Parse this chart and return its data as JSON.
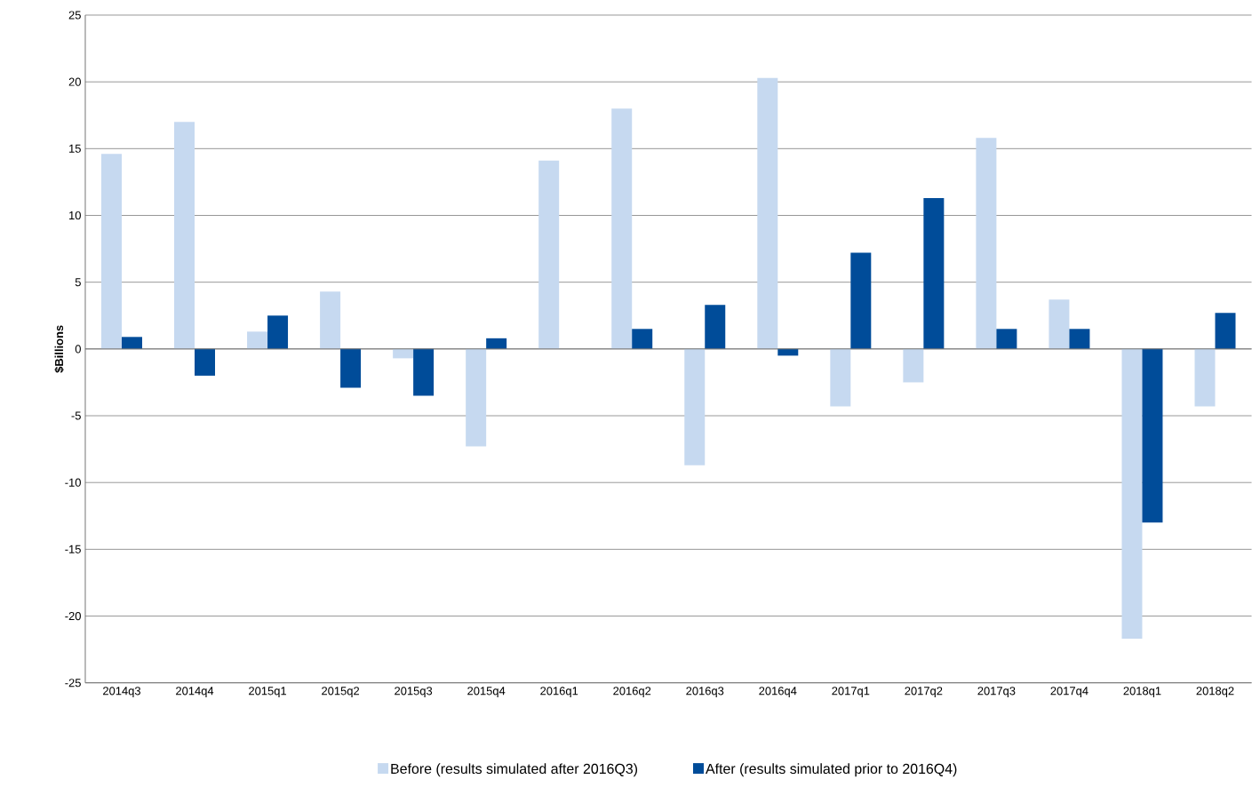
{
  "chart_data": {
    "type": "bar",
    "ylabel": "**$Billions**",
    "categories": [
      "2014q3",
      "2014q4",
      "2015q1",
      "2015q2",
      "2015q3",
      "2015q4",
      "2016q1",
      "2016q2",
      "2016q3",
      "2016q4",
      "2017q1",
      "2017q2",
      "2017q3",
      "2017q4",
      "2018q1",
      "2018q2"
    ],
    "series": [
      {
        "name": "Before (results simulated after 2016Q3)",
        "color": "#c6d9f0",
        "values": [
          14.6,
          17.0,
          1.3,
          4.3,
          -0.7,
          -7.3,
          14.1,
          18.0,
          -8.7,
          20.3,
          -4.3,
          -2.5,
          15.8,
          3.7,
          -21.7,
          -4.3
        ]
      },
      {
        "name": "After (results simulated prior to 2016Q4)",
        "color": "#004c99",
        "values": [
          0.9,
          -2.0,
          2.5,
          -2.9,
          -3.5,
          0.8,
          0,
          1.5,
          3.3,
          -0.5,
          7.2,
          11.3,
          1.5,
          1.5,
          -13.0,
          2.7
        ]
      }
    ],
    "ylim": [
      -25,
      25
    ],
    "yticks": [
      -25,
      -20,
      -15,
      -10,
      -5,
      0,
      5,
      10,
      15,
      20,
      25
    ],
    "grid": "y",
    "legend": "bottom"
  }
}
